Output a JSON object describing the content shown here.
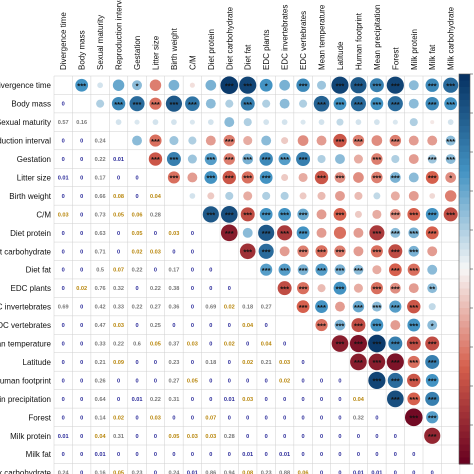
{
  "chart_data": {
    "type": "heatmap",
    "subtype": "correlation-matrix",
    "variables": [
      "Divergence time",
      "Body mass",
      "Sexual maturity",
      "Reproduction interval",
      "Gestation",
      "Litter size",
      "Birth weight",
      "C/M",
      "Diet protein",
      "Diet carbohydrate",
      "Diet fat",
      "EDC plants",
      "EDC invertebrates",
      "EDC vertebrates",
      "Mean temperature",
      "Latitude",
      "Human footprint",
      "Mean precipitation",
      "Forest",
      "Milk protein",
      "Milk fat",
      "Milk carbohydrate"
    ],
    "row_labels_visible": [
      "ivergence time",
      "Body mass",
      "Sexual maturity",
      "duction interval",
      "Gestation",
      "Litter size",
      "Birth weight",
      "C/M",
      "Diet protein",
      "t carbohydrate",
      "Diet fat",
      "EDC plants",
      "C invertebrates",
      "DC vertebrates",
      "an temperature",
      "Latitude",
      "uman footprint",
      "in precipitation",
      "Forest",
      "Milk protein",
      "Milk fat",
      "k carbohydrate"
    ],
    "lower_triangle_pvalues": [
      [],
      [
        "0"
      ],
      [
        "0.57",
        "0.16"
      ],
      [
        "0",
        "0",
        "0.24"
      ],
      [
        "0",
        "0",
        "0.22",
        "0.01"
      ],
      [
        "0.01",
        "0",
        "0.17",
        "0",
        "0"
      ],
      [
        "0",
        "0",
        "0.66",
        "0.08",
        "0",
        "0.04"
      ],
      [
        "0.03",
        "0",
        "0.73",
        "0.05",
        "0.06",
        "0.28",
        ""
      ],
      [
        "0",
        "0",
        "0.63",
        "0",
        "0.05",
        "0",
        "0.03",
        "0"
      ],
      [
        "0",
        "0",
        "0.71",
        "0",
        "0.02",
        "0.03",
        "0",
        "0",
        ""
      ],
      [
        "0",
        "0",
        "0.5",
        "0.07",
        "0.22",
        "0",
        "0.17",
        "0",
        "0",
        ""
      ],
      [
        "0",
        "0.02",
        "0.76",
        "0.32",
        "0",
        "0.22",
        "0.38",
        "0",
        "0",
        "0",
        ""
      ],
      [
        "0.69",
        "0",
        "0.42",
        "0.33",
        "0.22",
        "0.27",
        "0.36",
        "0",
        "0.69",
        "0.02",
        "0.18",
        "0.27"
      ],
      [
        "0",
        "0",
        "0.47",
        "0.03",
        "0",
        "0.25",
        "0",
        "0",
        "0",
        "0",
        "0.04",
        "0",
        ""
      ],
      [
        "0",
        "0",
        "0.33",
        "0.22",
        "0.6",
        "0.05",
        "0.37",
        "0.03",
        "0",
        "0.02",
        "0",
        "0.04",
        "0",
        ""
      ],
      [
        "0",
        "0",
        "0.21",
        "0.09",
        "0",
        "0",
        "0.23",
        "0",
        "0.18",
        "0",
        "0.02",
        "0.21",
        "0.03",
        "0",
        ""
      ],
      [
        "0",
        "0",
        "0.26",
        "0",
        "0",
        "0",
        "0.27",
        "0.05",
        "0",
        "0",
        "0",
        "0",
        "0.02",
        "0",
        "0",
        "0"
      ],
      [
        "0",
        "0",
        "0.64",
        "0",
        "0.01",
        "0.22",
        "0.31",
        "0",
        "0",
        "0.01",
        "0.03",
        "0",
        "0",
        "0",
        "0",
        "0",
        "0.04"
      ],
      [
        "0",
        "0",
        "0.14",
        "0.02",
        "0",
        "0.03",
        "0",
        "0",
        "0.07",
        "0",
        "0",
        "0",
        "0",
        "0",
        "0",
        "0",
        "0.32",
        "0"
      ],
      [
        "0.01",
        "0",
        "0.04",
        "0.31",
        "0",
        "0",
        "0.05",
        "0.03",
        "0.03",
        "0.28",
        "0",
        "0",
        "0",
        "0",
        "0",
        "0",
        "0",
        "0",
        "0"
      ],
      [
        "0",
        "0",
        "0.01",
        "0",
        "0",
        "0",
        "0",
        "0",
        "0",
        "0",
        "0.01",
        "0",
        "0.01",
        "0",
        "0",
        "0",
        "0",
        "0",
        "0",
        "0"
      ],
      [
        "0.24",
        "0",
        "0.16",
        "0.05",
        "0.23",
        "0",
        "0.24",
        "0.01",
        "0.86",
        "0.94",
        "0.08",
        "0.23",
        "0.88",
        "0.06",
        "0",
        "0",
        "0.01",
        "0.01",
        "0",
        "0",
        "0"
      ]
    ],
    "upper_triangle_correlations": [
      [
        0.5,
        0.1,
        0.4,
        0.3,
        -0.4,
        0.35,
        -0.08,
        0.35,
        0.95,
        0.9,
        0.5,
        0.35,
        0.55,
        0.25,
        0.9,
        0.8,
        0.6,
        0.9,
        0.3,
        0.55,
        0.7
      ],
      [
        0.2,
        0.55,
        0.7,
        -0.45,
        0.8,
        0.65,
        0.3,
        0.2,
        0.6,
        0.2,
        0.3,
        0.2,
        0.75,
        0.5,
        0.7,
        0.5,
        0.7,
        0.3,
        0.55,
        0.5
      ],
      [
        0.1,
        0.08,
        0.1,
        0.1,
        0.08,
        0.1,
        0.3,
        0.2,
        0.1,
        0.1,
        0.08,
        0.1,
        0.15,
        0.1,
        0.1,
        0.08,
        0.2,
        -0.05,
        0.1
      ],
      [
        0.3,
        -0.45,
        0.25,
        0.2,
        -0.3,
        -0.4,
        -0.25,
        0.3,
        -0.15,
        -0.35,
        -0.3,
        -0.55,
        -0.4,
        -0.35,
        -0.4,
        -0.3,
        -0.3,
        0.3
      ],
      [
        -0.55,
        0.6,
        0.25,
        0.45,
        -0.4,
        0.35,
        0.55,
        0.45,
        0.6,
        0.2,
        0.3,
        -0.25,
        -0.4,
        0.2,
        -0.3,
        0.25,
        0.3
      ],
      [
        -0.45,
        -0.3,
        0.5,
        -0.55,
        -0.45,
        0.5,
        -0.15,
        -0.25,
        -0.55,
        -0.35,
        -0.35,
        -0.4,
        0.35,
        0.3,
        -0.5,
        -0.35
      ],
      [
        0.1,
        -0.15,
        0.2,
        -0.25,
        0.2,
        0.2,
        -0.15,
        -0.2,
        -0.3,
        -0.2,
        0.15,
        -0.25,
        -0.3,
        -0.1,
        -0.4
      ],
      [
        0.8,
        0.85,
        -0.6,
        0.5,
        0.5,
        0.4,
        -0.3,
        -0.5,
        -0.15,
        -0.25,
        -0.35,
        -0.5,
        0.5,
        -0.6
      ],
      [
        -0.85,
        0.3,
        0.8,
        -0.7,
        0.5,
        -0.3,
        -0.45,
        -0.3,
        -0.7,
        0.3,
        0.35,
        -0.5
      ],
      [
        -0.75,
        0.7,
        -0.3,
        -0.4,
        -0.45,
        -0.4,
        -0.3,
        -0.45,
        -0.6,
        0.35,
        -0.3
      ],
      [
        0.45,
        0.45,
        0.35,
        0.45,
        0.35,
        0.3,
        -0.25,
        -0.5,
        -0.45,
        0.3
      ],
      [
        -0.6,
        -0.45,
        -0.2,
        0.5,
        -0.25,
        -0.45,
        -0.35,
        -0.3,
        0.3
      ],
      [
        -0.5,
        0.5,
        -0.3,
        0.4,
        0.3,
        0.45,
        -0.55,
        0.15
      ],
      [
        -0.45,
        0.35,
        -0.6,
        0.5,
        -0.3,
        0.5,
        0.3
      ],
      [
        -0.85,
        -0.9,
        0.95,
        0.6,
        -0.6,
        -0.6
      ],
      [
        -0.85,
        -0.85,
        -0.9,
        -0.45,
        0.6
      ],
      [
        0.9,
        0.7,
        -0.55,
        0.5
      ],
      [
        0.85,
        -0.5,
        0.6
      ],
      [
        -0.95,
        0.45
      ],
      [
        -0.8
      ]
    ],
    "upper_triangle_stars": [
      [
        "***",
        "",
        "",
        "*",
        "",
        "",
        "",
        "",
        "***",
        "***",
        "*",
        "",
        "***",
        "",
        "***",
        "***",
        "***",
        "***",
        "",
        "***",
        "***"
      ],
      [
        "",
        "***",
        "***",
        "***",
        "***",
        "***",
        "",
        "",
        "***",
        "",
        "",
        "",
        "***",
        "***",
        "***",
        "***",
        "***",
        "",
        "***",
        "***"
      ],
      [
        "",
        "",
        "",
        "",
        "",
        "",
        "",
        "",
        "",
        "",
        "",
        "",
        "",
        "",
        "",
        "",
        "",
        "",
        ""
      ],
      [
        "",
        "***",
        "",
        "",
        "",
        "***",
        "",
        "",
        "",
        "",
        "",
        "***",
        "***",
        "",
        "***",
        "",
        "",
        "***"
      ],
      [
        "***",
        "***",
        "",
        "***",
        "***",
        "***",
        "***",
        "***",
        "***",
        "",
        "",
        "",
        "***",
        "",
        "",
        "***",
        "***"
      ],
      [
        "***",
        "",
        "***",
        "***",
        "***",
        "***",
        "",
        "",
        "***",
        "***",
        "",
        "***",
        "***",
        "",
        "***",
        "*"
      ],
      [
        "",
        "",
        "",
        "",
        "",
        "",
        "",
        "",
        "",
        "",
        "",
        "",
        "",
        "",
        ""
      ],
      [
        "***",
        "***",
        "***",
        "***",
        "***",
        "***",
        "",
        "***",
        "",
        "",
        "***",
        "***",
        "***",
        "***"
      ],
      [
        "***",
        "",
        "***",
        "***",
        "***",
        "",
        "",
        "",
        "***",
        "***",
        "***",
        "***"
      ],
      [
        "***",
        "***",
        "",
        "***",
        "***",
        "***",
        "",
        "***",
        "***",
        "***",
        ""
      ],
      [
        "***",
        "***",
        "***",
        "***",
        "***",
        "***",
        "",
        "***",
        "***",
        ""
      ],
      [
        "***",
        "***",
        "",
        "***",
        "",
        "***",
        "***",
        "",
        "**"
      ],
      [
        "***",
        "***",
        "",
        "***",
        "***",
        "***",
        "***",
        ""
      ],
      [
        "***",
        "***",
        "***",
        "***",
        "",
        "***",
        "*"
      ],
      [
        "***",
        "***",
        "***",
        "***",
        "***",
        "***"
      ],
      [
        "***",
        "***",
        "***",
        "***",
        "***"
      ],
      [
        "***",
        "***",
        "***",
        "***"
      ],
      [
        "***",
        "***",
        "***"
      ],
      [
        "***",
        "***"
      ],
      [
        "***"
      ]
    ],
    "colorscale": {
      "negative": "#67001f",
      "neutral": "#f7f7f7",
      "positive": "#053061",
      "range": [
        -1,
        1
      ]
    },
    "value_colors": {
      "significant": "#2a2a9a",
      "near": "#b8860b",
      "nonsignificant": "#777777"
    },
    "grid": true,
    "legend_placement": "right"
  }
}
